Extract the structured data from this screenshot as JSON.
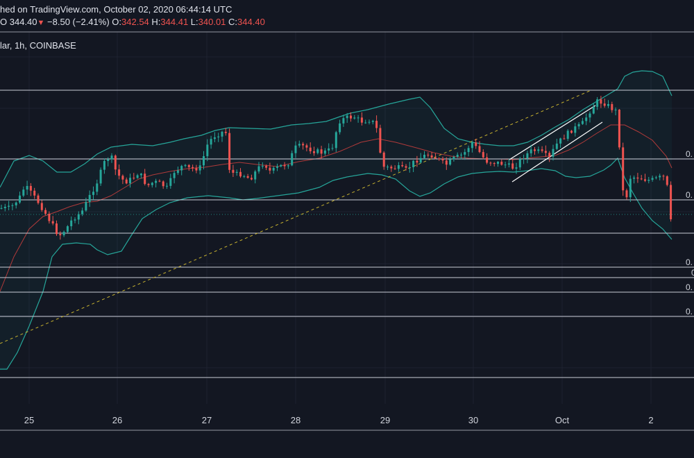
{
  "header": {
    "published_line": "hed on TradingView.com, October 02, 2020 06:44:14 UTC",
    "ohlc": {
      "prefix": "O",
      "last": "344.40",
      "change_arrow": "▼",
      "change": "−8.50 (−2.41%)",
      "o_label": "O:",
      "o_value": "342.54",
      "h_label": "H:",
      "h_value": "344.41",
      "l_label": "L:",
      "l_value": "340.01",
      "c_label": "C:",
      "c_value": "344.40"
    },
    "symbol_line": "lar, 1h, COINBASE"
  },
  "colors": {
    "background": "#131722",
    "up": "#26a69a",
    "down": "#ef5350",
    "bollinger": "#26a69a",
    "basis": "#b03a3a",
    "trendline": "#c8b330",
    "level": "#c9ccd6",
    "channel": "#ffffff",
    "grid": "#1e2230"
  },
  "chart_data": {
    "type": "candlestick",
    "timeframe": "1h",
    "exchange": "COINBASE",
    "x_ticks": [
      "25",
      "26",
      "27",
      "28",
      "29",
      "30",
      "Oct",
      "2"
    ],
    "price_labels": [
      "0.",
      "0.",
      "0.",
      "0",
      "0.",
      "0."
    ],
    "indicators": [
      "Bollinger Bands"
    ],
    "grid": true
  }
}
